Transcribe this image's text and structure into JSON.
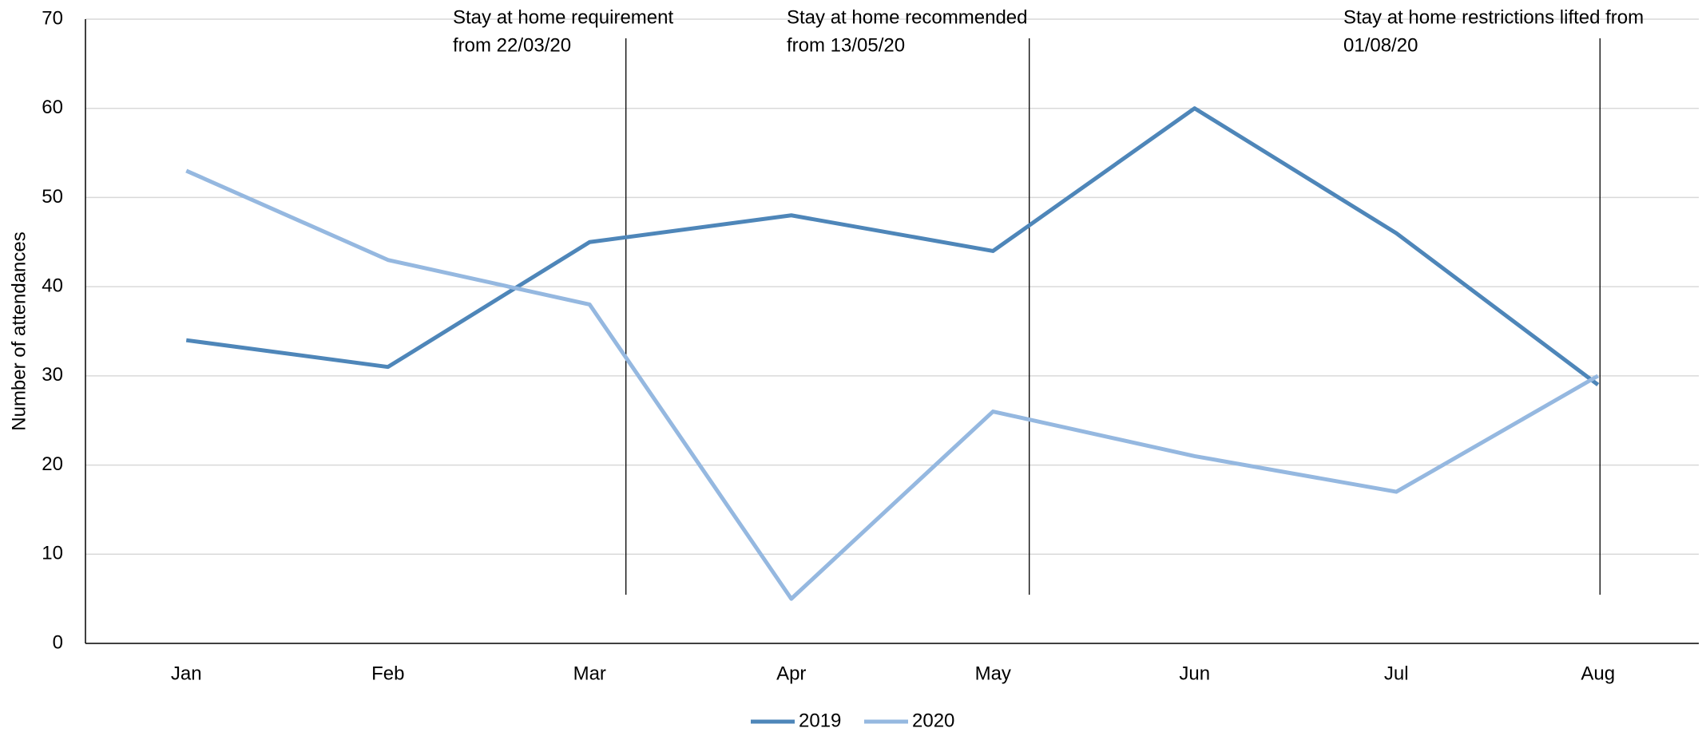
{
  "chart_data": {
    "type": "line",
    "y_label": "Number of attendances",
    "categories": [
      "Jan",
      "Feb",
      "Mar",
      "Apr",
      "May",
      "Jun",
      "Jul",
      "Aug"
    ],
    "series": [
      {
        "name": "2019",
        "color": "#4e86b9",
        "values": [
          34,
          31,
          45,
          48,
          44,
          60,
          46,
          29
        ]
      },
      {
        "name": "2020",
        "color": "#95b8e0",
        "values": [
          53,
          43,
          38,
          5,
          26,
          21,
          17,
          30
        ]
      }
    ],
    "ylim": [
      0,
      70
    ],
    "yticks": [
      0,
      10,
      20,
      30,
      40,
      50,
      60,
      70
    ],
    "grid": true,
    "legend": "bottom",
    "annotations": [
      {
        "text": [
          "Stay at home requirement",
          "from 22/03/20"
        ]
      },
      {
        "text": [
          "Stay at home recommended",
          "from 13/05/20"
        ]
      },
      {
        "text": [
          "Stay at home restrictions lifted from",
          "01/08/20"
        ]
      }
    ]
  }
}
